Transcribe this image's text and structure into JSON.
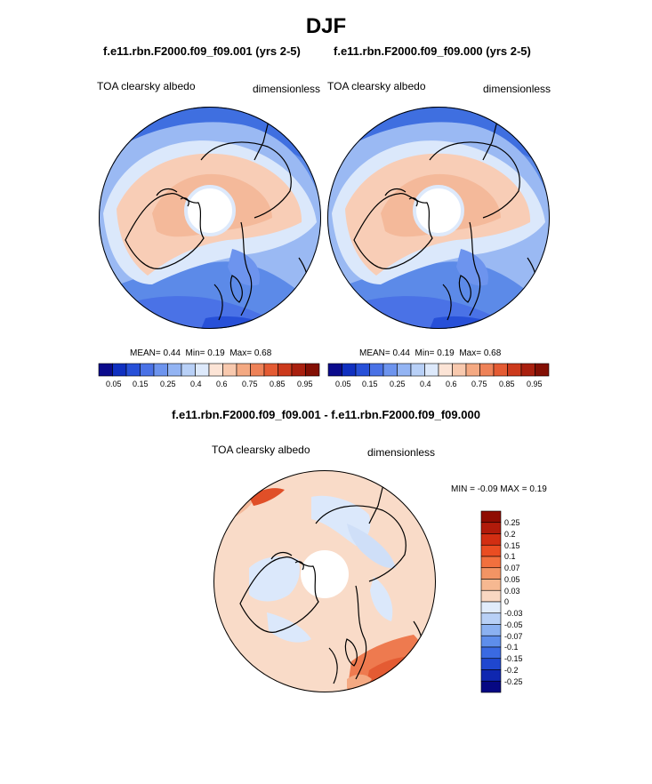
{
  "title": "DJF",
  "panels": [
    {
      "case": "f.e11.rbn.F2000.f09_f09.001 (yrs 2-5)",
      "variable": "TOA clearsky albedo",
      "units": "dimensionless",
      "stats": {
        "mean_label": "MEAN=",
        "mean": "0.44",
        "min_label": "Min=",
        "min": "0.19",
        "max_label": "Max=",
        "max": "0.68"
      }
    },
    {
      "case": "f.e11.rbn.F2000.f09_f09.000 (yrs 2-5)",
      "variable": "TOA clearsky albedo",
      "units": "dimensionless",
      "stats": {
        "mean_label": "MEAN=",
        "mean": "0.44",
        "min_label": "Min=",
        "min": "0.19",
        "max_label": "Max=",
        "max": "0.68"
      }
    }
  ],
  "colorbar": {
    "colors": [
      "#0b0b8c",
      "#1030c0",
      "#2750d8",
      "#4a72e6",
      "#6d94ee",
      "#93b4f3",
      "#b8d0f7",
      "#dde9fb",
      "#fce4d6",
      "#f8c9ae",
      "#f4a982",
      "#ee8258",
      "#e45b33",
      "#cc3a1c",
      "#a9200f",
      "#830f04"
    ],
    "labels": [
      "0.05",
      "0.15",
      "0.25",
      "0.4",
      "0.6",
      "0.75",
      "0.85",
      "0.95"
    ]
  },
  "difference": {
    "title": "f.e11.rbn.F2000.f09_f09.001 - f.e11.rbn.F2000.f09_f09.000",
    "variable": "TOA clearsky albedo",
    "units": "dimensionless",
    "minmax_label": "MIN =  -0.09 MAX =   0.19",
    "colorbar": {
      "colors": [
        "#8f0c02",
        "#b11b0b",
        "#d22e12",
        "#ea4d22",
        "#f2703e",
        "#f39464",
        "#f6b891",
        "#f9d7c2",
        "#e1ecfb",
        "#b8d0f6",
        "#8bb1f1",
        "#5e8eeb",
        "#3a6ae2",
        "#1f47cf",
        "#0f27b0",
        "#060883"
      ],
      "labels": [
        "0.25",
        "0.2",
        "0.15",
        "0.1",
        "0.07",
        "0.05",
        "0.03",
        "0",
        "-0.03",
        "-0.05",
        "-0.07",
        "-0.1",
        "-0.15",
        "-0.2",
        "-0.25"
      ]
    }
  }
}
